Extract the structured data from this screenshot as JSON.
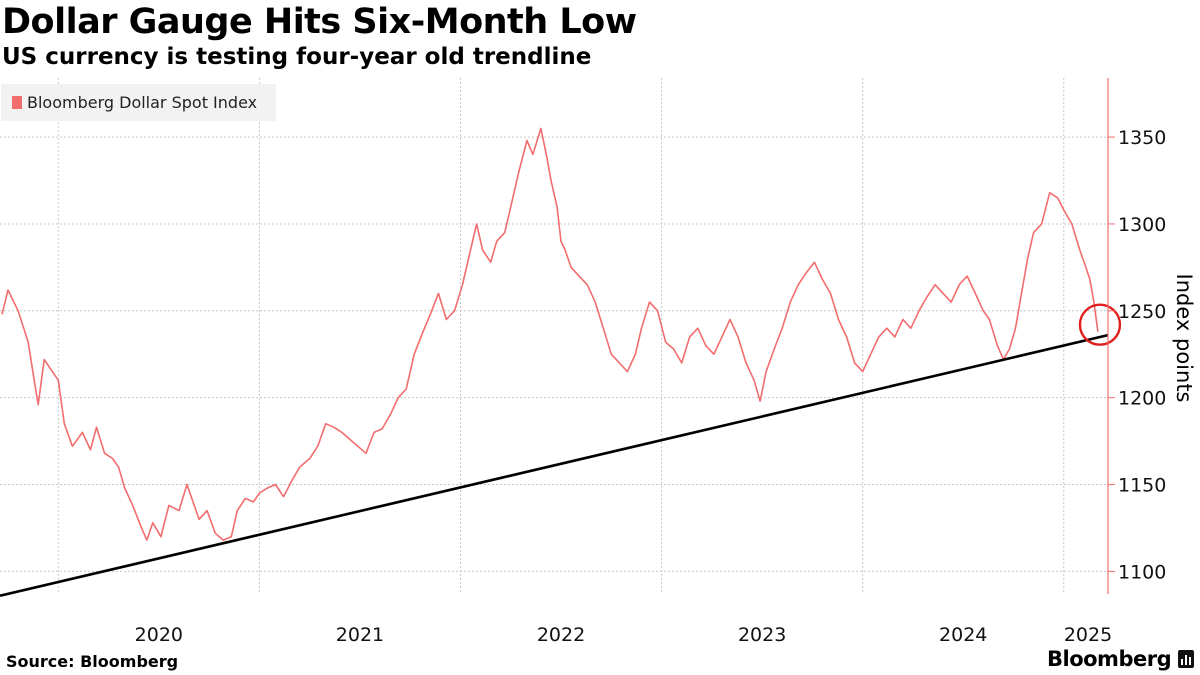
{
  "chart_data": {
    "type": "line",
    "title": "Dollar Gauge Hits Six-Month Low",
    "subtitle": "US currency is testing four-year old trendline",
    "ylabel": "Index points",
    "ylim": [
      1087,
      1384
    ],
    "xlim": [
      2019.71,
      2025.22
    ],
    "y_ticks": [
      1100,
      1150,
      1200,
      1250,
      1300,
      1350
    ],
    "x_ticks": [
      {
        "label": "2020",
        "value": 2020.0
      },
      {
        "label": "2021",
        "value": 2021.0
      },
      {
        "label": "2022",
        "value": 2022.0
      },
      {
        "label": "2023",
        "value": 2023.0
      },
      {
        "label": "2024",
        "value": 2024.0
      },
      {
        "label": "2025",
        "value": 2025.0
      }
    ],
    "grid": true,
    "legend_placement": "top-left",
    "series": [
      {
        "name": "Bloomberg Dollar Spot Index",
        "color": "#f26d6d",
        "points": [
          [
            2019.72,
            1248
          ],
          [
            2019.75,
            1262
          ],
          [
            2019.8,
            1250
          ],
          [
            2019.85,
            1232
          ],
          [
            2019.88,
            1210
          ],
          [
            2019.9,
            1196
          ],
          [
            2019.93,
            1222
          ],
          [
            2019.97,
            1215
          ],
          [
            2020.0,
            1210
          ],
          [
            2020.03,
            1185
          ],
          [
            2020.07,
            1172
          ],
          [
            2020.12,
            1180
          ],
          [
            2020.16,
            1170
          ],
          [
            2020.19,
            1183
          ],
          [
            2020.23,
            1168
          ],
          [
            2020.27,
            1165
          ],
          [
            2020.3,
            1160
          ],
          [
            2020.33,
            1148
          ],
          [
            2020.37,
            1138
          ],
          [
            2020.41,
            1126
          ],
          [
            2020.44,
            1118
          ],
          [
            2020.47,
            1128
          ],
          [
            2020.51,
            1120
          ],
          [
            2020.55,
            1138
          ],
          [
            2020.6,
            1135
          ],
          [
            2020.64,
            1150
          ],
          [
            2020.67,
            1140
          ],
          [
            2020.7,
            1130
          ],
          [
            2020.74,
            1135
          ],
          [
            2020.78,
            1122
          ],
          [
            2020.82,
            1118
          ],
          [
            2020.86,
            1120
          ],
          [
            2020.89,
            1135
          ],
          [
            2020.93,
            1142
          ],
          [
            2020.97,
            1140
          ],
          [
            2021.0,
            1145
          ],
          [
            2021.04,
            1148
          ],
          [
            2021.08,
            1150
          ],
          [
            2021.12,
            1143
          ],
          [
            2021.16,
            1152
          ],
          [
            2021.2,
            1160
          ],
          [
            2021.25,
            1165
          ],
          [
            2021.29,
            1172
          ],
          [
            2021.33,
            1185
          ],
          [
            2021.37,
            1183
          ],
          [
            2021.41,
            1180
          ],
          [
            2021.45,
            1176
          ],
          [
            2021.49,
            1172
          ],
          [
            2021.53,
            1168
          ],
          [
            2021.57,
            1180
          ],
          [
            2021.61,
            1182
          ],
          [
            2021.65,
            1190
          ],
          [
            2021.69,
            1200
          ],
          [
            2021.73,
            1205
          ],
          [
            2021.77,
            1225
          ],
          [
            2021.81,
            1237
          ],
          [
            2021.85,
            1248
          ],
          [
            2021.89,
            1260
          ],
          [
            2021.93,
            1245
          ],
          [
            2021.97,
            1250
          ],
          [
            2022.01,
            1265
          ],
          [
            2022.04,
            1280
          ],
          [
            2022.08,
            1300
          ],
          [
            2022.11,
            1285
          ],
          [
            2022.15,
            1278
          ],
          [
            2022.18,
            1290
          ],
          [
            2022.22,
            1295
          ],
          [
            2022.25,
            1310
          ],
          [
            2022.29,
            1330
          ],
          [
            2022.33,
            1348
          ],
          [
            2022.36,
            1340
          ],
          [
            2022.4,
            1355
          ],
          [
            2022.43,
            1338
          ],
          [
            2022.45,
            1325
          ],
          [
            2022.48,
            1310
          ],
          [
            2022.5,
            1290
          ],
          [
            2022.52,
            1285
          ],
          [
            2022.55,
            1275
          ],
          [
            2022.59,
            1270
          ],
          [
            2022.63,
            1265
          ],
          [
            2022.67,
            1255
          ],
          [
            2022.71,
            1240
          ],
          [
            2022.75,
            1225
          ],
          [
            2022.79,
            1220
          ],
          [
            2022.83,
            1215
          ],
          [
            2022.87,
            1225
          ],
          [
            2022.9,
            1240
          ],
          [
            2022.94,
            1255
          ],
          [
            2022.98,
            1250
          ],
          [
            2023.02,
            1232
          ],
          [
            2023.06,
            1228
          ],
          [
            2023.1,
            1220
          ],
          [
            2023.14,
            1235
          ],
          [
            2023.18,
            1240
          ],
          [
            2023.22,
            1230
          ],
          [
            2023.26,
            1225
          ],
          [
            2023.3,
            1235
          ],
          [
            2023.34,
            1245
          ],
          [
            2023.38,
            1235
          ],
          [
            2023.42,
            1220
          ],
          [
            2023.46,
            1210
          ],
          [
            2023.49,
            1198
          ],
          [
            2023.52,
            1215
          ],
          [
            2023.56,
            1228
          ],
          [
            2023.6,
            1240
          ],
          [
            2023.64,
            1255
          ],
          [
            2023.68,
            1265
          ],
          [
            2023.72,
            1272
          ],
          [
            2023.76,
            1278
          ],
          [
            2023.8,
            1268
          ],
          [
            2023.84,
            1260
          ],
          [
            2023.88,
            1245
          ],
          [
            2023.92,
            1235
          ],
          [
            2023.96,
            1220
          ],
          [
            2024.0,
            1215
          ],
          [
            2024.04,
            1225
          ],
          [
            2024.08,
            1235
          ],
          [
            2024.12,
            1240
          ],
          [
            2024.16,
            1235
          ],
          [
            2024.2,
            1245
          ],
          [
            2024.24,
            1240
          ],
          [
            2024.28,
            1250
          ],
          [
            2024.32,
            1258
          ],
          [
            2024.36,
            1265
          ],
          [
            2024.4,
            1260
          ],
          [
            2024.44,
            1255
          ],
          [
            2024.48,
            1265
          ],
          [
            2024.52,
            1270
          ],
          [
            2024.56,
            1260
          ],
          [
            2024.6,
            1250
          ],
          [
            2024.63,
            1245
          ],
          [
            2024.67,
            1230
          ],
          [
            2024.7,
            1222
          ],
          [
            2024.73,
            1228
          ],
          [
            2024.76,
            1240
          ],
          [
            2024.79,
            1260
          ],
          [
            2024.82,
            1280
          ],
          [
            2024.85,
            1295
          ],
          [
            2024.89,
            1300
          ],
          [
            2024.93,
            1318
          ],
          [
            2024.97,
            1315
          ],
          [
            2025.0,
            1308
          ],
          [
            2025.04,
            1300
          ],
          [
            2025.08,
            1285
          ],
          [
            2025.11,
            1275
          ],
          [
            2025.13,
            1268
          ],
          [
            2025.15,
            1255
          ],
          [
            2025.17,
            1238
          ]
        ]
      }
    ],
    "trendline": {
      "color": "#000000",
      "from": [
        2019.71,
        1086
      ],
      "to": [
        2025.22,
        1236
      ]
    },
    "highlight": {
      "color": "#e02020",
      "at": [
        2025.18,
        1242
      ]
    }
  },
  "source": "Source: Bloomberg",
  "brand": "Bloomberg"
}
